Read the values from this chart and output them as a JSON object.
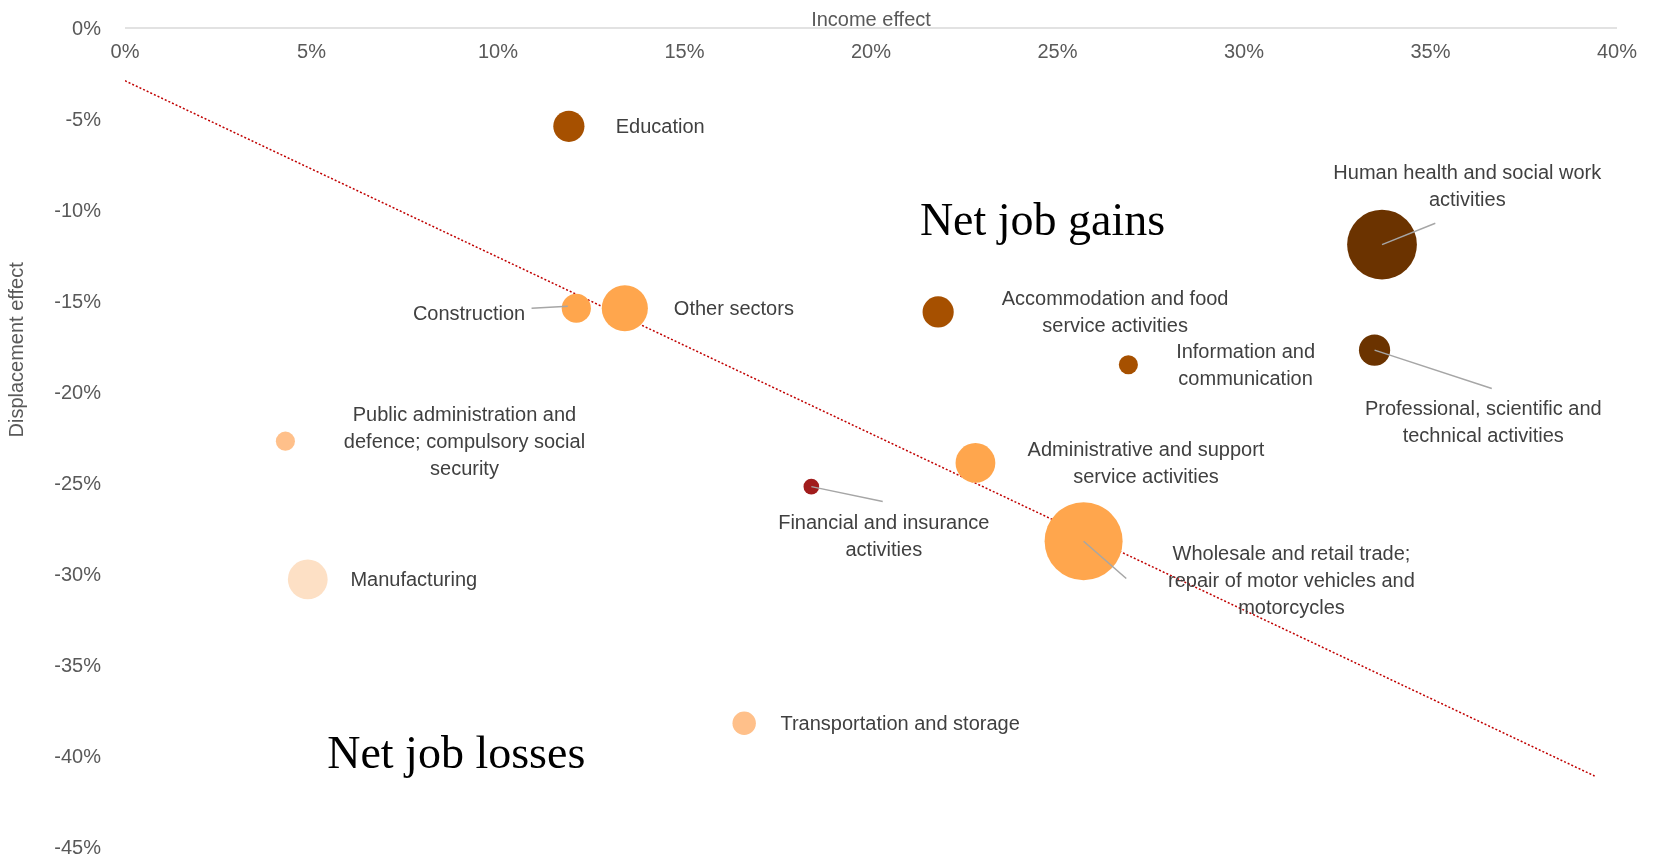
{
  "chart_data": {
    "type": "bubble",
    "xlabel": "Income effect",
    "ylabel": "Displacement effect",
    "xlim": [
      0,
      40
    ],
    "xticks": [
      {
        "value": 0,
        "label": "0%"
      },
      {
        "value": 5,
        "label": "5%"
      },
      {
        "value": 10,
        "label": "10%"
      },
      {
        "value": 15,
        "label": "15%"
      },
      {
        "value": 20,
        "label": "20%"
      },
      {
        "value": 25,
        "label": "25%"
      },
      {
        "value": 30,
        "label": "30%"
      },
      {
        "value": 35,
        "label": "35%"
      },
      {
        "value": 40,
        "label": "40%"
      }
    ],
    "ylim": [
      -45,
      0
    ],
    "yticks": [
      {
        "value": 0,
        "label": "0%"
      },
      {
        "value": -5,
        "label": "-5%"
      },
      {
        "value": -10,
        "label": "-10%"
      },
      {
        "value": -15,
        "label": "-15%"
      },
      {
        "value": -20,
        "label": "-20%"
      },
      {
        "value": -25,
        "label": "-25%"
      },
      {
        "value": -30,
        "label": "-30%"
      },
      {
        "value": -35,
        "label": "-35%"
      },
      {
        "value": -40,
        "label": "-40%"
      },
      {
        "value": -45,
        "label": "-45%"
      }
    ],
    "grid": false,
    "legend": false,
    "marker": "circle",
    "annotations": [
      "Net job gains",
      "Net job losses"
    ],
    "series": [
      {
        "name": "Education",
        "color": "#a65000",
        "x": [
          11.9
        ],
        "values": [
          -5.4
        ],
        "sizes": [
          0.16
        ]
      },
      {
        "name": "Human health and social work activities",
        "color": "#6b3300",
        "x": [
          33.7
        ],
        "values": [
          -11.9
        ],
        "sizes": [
          0.8
        ]
      },
      {
        "name": "Construction",
        "color": "#ffa64d",
        "x": [
          12.1
        ],
        "values": [
          -15.4
        ],
        "sizes": [
          0.14
        ]
      },
      {
        "name": "Other sectors",
        "color": "#ffa64d",
        "x": [
          13.4
        ],
        "values": [
          -15.4
        ],
        "sizes": [
          0.35
        ]
      },
      {
        "name": "Accommodation and food service activities",
        "color": "#a65000",
        "x": [
          21.8
        ],
        "values": [
          -15.6
        ],
        "sizes": [
          0.16
        ]
      },
      {
        "name": "Information and communication",
        "color": "#a65000",
        "x": [
          26.9
        ],
        "values": [
          -18.5
        ],
        "sizes": [
          0.06
        ]
      },
      {
        "name": "Professional, scientific and technical activities",
        "color": "#6b3300",
        "x": [
          33.5
        ],
        "values": [
          -17.7
        ],
        "sizes": [
          0.16
        ]
      },
      {
        "name": "Public administration and defence; compulsory social security",
        "color": "#ffc08a",
        "x": [
          4.3
        ],
        "values": [
          -22.7
        ],
        "sizes": [
          0.06
        ]
      },
      {
        "name": "Administrative and support service activities",
        "color": "#ffa64d",
        "x": [
          22.8
        ],
        "values": [
          -23.9
        ],
        "sizes": [
          0.26
        ]
      },
      {
        "name": "Financial and insurance activities",
        "color": "#a11c1c",
        "x": [
          18.4
        ],
        "values": [
          -25.2
        ],
        "sizes": [
          0.04
        ]
      },
      {
        "name": "Wholesale and retail trade; repair of motor vehicles and motorcycles",
        "color": "#ffa64d",
        "x": [
          25.7
        ],
        "values": [
          -28.2
        ],
        "sizes": [
          1
        ]
      },
      {
        "name": "Manufacturing",
        "color": "#fde0c5",
        "x": [
          4.9
        ],
        "values": [
          -30.3
        ],
        "sizes": [
          0.26
        ]
      },
      {
        "name": "Transportation and storage",
        "color": "#ffc08a",
        "x": [
          16.6
        ],
        "values": [
          -38.2
        ],
        "sizes": [
          0.09
        ]
      },
      {
        "type": "line",
        "color": "#c00000",
        "line_style": "dotted",
        "marker": "none",
        "x": [
          0,
          39.4
        ],
        "values": [
          -2.9,
          -41.1
        ]
      }
    ]
  }
}
